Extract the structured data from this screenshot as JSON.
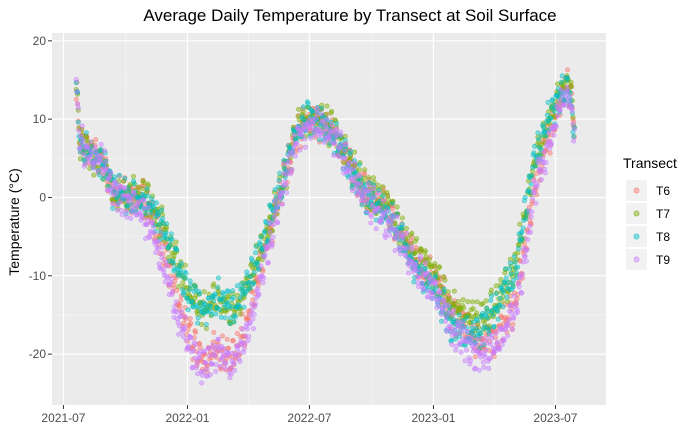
{
  "chart_data": {
    "type": "scatter",
    "title": "Average Daily Temperature by Transect at Soil Surface",
    "xlabel": "",
    "ylabel": "Temperature (°C)",
    "x_start": "2021-07-20",
    "x_end": "2023-08-31",
    "xlim_days_from_2021_07_01": [
      -17,
      805
    ],
    "ylim": [
      -26.5,
      21
    ],
    "x_ticks": [
      {
        "label": "2021-07",
        "day": 0
      },
      {
        "label": "2022-01",
        "day": 184
      },
      {
        "label": "2022-07",
        "day": 365
      },
      {
        "label": "2023-01",
        "day": 549
      },
      {
        "label": "2023-07",
        "day": 730
      }
    ],
    "y_ticks": [
      20,
      10,
      0,
      -10,
      -20
    ],
    "legend": {
      "title": "Transect",
      "position": "right"
    },
    "point_alpha": 0.45,
    "series": [
      {
        "name": "T6",
        "color": "#F8766D",
        "offsets": [
          0,
          0,
          0,
          0.6,
          -2.6,
          -4.8,
          -5.2,
          -2.8,
          0,
          0,
          0.5,
          0.4,
          0.6,
          0.4,
          0.8,
          -0.6,
          -3.0,
          -4.0,
          -2.0,
          0.5,
          0
        ]
      },
      {
        "name": "T7",
        "color": "#7CAE00",
        "offsets": [
          0,
          0,
          0,
          0.8,
          1.0,
          1.6,
          1.2,
          0.8,
          0.2,
          0.6,
          0.8,
          0.8,
          0.8,
          1.0,
          1.2,
          1.4,
          1.0,
          0.6,
          0.2,
          0.4,
          0
        ]
      },
      {
        "name": "T8",
        "color": "#00BFC4",
        "offsets": [
          0,
          0,
          0,
          0.2,
          0.8,
          1.0,
          1.6,
          0.8,
          0.6,
          0.5,
          -0.2,
          0.2,
          0.0,
          -0.4,
          -0.8,
          -1.2,
          0.6,
          0.8,
          0.4,
          -0.5,
          0
        ]
      },
      {
        "name": "T9",
        "color": "#C77CFF",
        "offsets": [
          0,
          0,
          0,
          -1.8,
          -5.0,
          -6.2,
          -5.4,
          -4.6,
          -0.4,
          -0.6,
          0,
          -0.6,
          -0.8,
          -0.6,
          -1.0,
          -2.5,
          -4.2,
          -4.8,
          -3.0,
          0,
          0
        ]
      }
    ],
    "base_curve": [
      {
        "day": 19,
        "value": 13.5
      },
      {
        "day": 25,
        "value": 7
      },
      {
        "day": 40,
        "value": 5.5
      },
      {
        "day": 60,
        "value": 4.5
      },
      {
        "day": 75,
        "value": 0.5
      },
      {
        "day": 100,
        "value": 0
      },
      {
        "day": 125,
        "value": -1
      },
      {
        "day": 150,
        "value": -5
      },
      {
        "day": 170,
        "value": -10
      },
      {
        "day": 190,
        "value": -14
      },
      {
        "day": 210,
        "value": -16
      },
      {
        "day": 230,
        "value": -14
      },
      {
        "day": 250,
        "value": -16
      },
      {
        "day": 270,
        "value": -13
      },
      {
        "day": 290,
        "value": -8
      },
      {
        "day": 320,
        "value": 0
      },
      {
        "day": 345,
        "value": 8
      },
      {
        "day": 365,
        "value": 10
      },
      {
        "day": 400,
        "value": 8
      },
      {
        "day": 430,
        "value": 3
      },
      {
        "day": 450,
        "value": 0
      },
      {
        "day": 480,
        "value": -2
      },
      {
        "day": 520,
        "value": -8
      },
      {
        "day": 550,
        "value": -11
      },
      {
        "day": 575,
        "value": -15
      },
      {
        "day": 595,
        "value": -16
      },
      {
        "day": 615,
        "value": -17
      },
      {
        "day": 640,
        "value": -15
      },
      {
        "day": 670,
        "value": -10
      },
      {
        "day": 700,
        "value": 5
      },
      {
        "day": 730,
        "value": 12
      },
      {
        "day": 748,
        "value": 15
      },
      {
        "day": 758,
        "value": 9
      }
    ]
  }
}
